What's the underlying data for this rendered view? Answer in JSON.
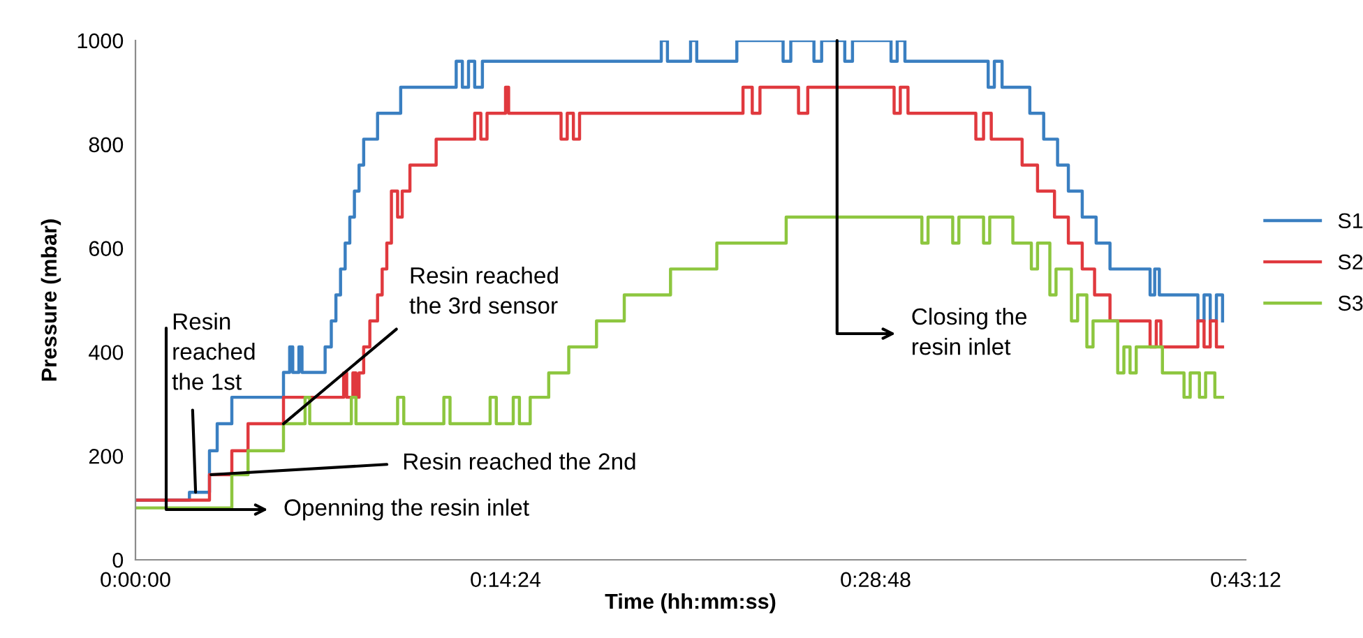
{
  "chart_data": {
    "type": "step",
    "xlabel": "Time (hh:mm:ss)",
    "ylabel": "Pressure (mbar)",
    "xlim": [
      0,
      0.72
    ],
    "xticks": [
      {
        "value": 0,
        "label": "0:00:00"
      },
      {
        "value": 0.24,
        "label": "0:14:24"
      },
      {
        "value": 0.48,
        "label": "0:28:48"
      },
      {
        "value": 0.72,
        "label": "0:43:12"
      }
    ],
    "ylim": [
      0,
      1000
    ],
    "yticks": [
      0,
      200,
      400,
      600,
      800,
      1000
    ],
    "legend": "right",
    "series": [
      {
        "name": "S1",
        "color": "#3a7fc1",
        "x": [
          0,
          0.035,
          0.048,
          0.053,
          0.0625,
          0.096,
          0.1,
          0.102,
          0.106,
          0.108,
          0.123,
          0.127,
          0.13,
          0.133,
          0.136,
          0.139,
          0.142,
          0.145,
          0.148,
          0.157,
          0.172,
          0.208,
          0.212,
          0.216,
          0.22,
          0.225,
          0.341,
          0.345,
          0.36,
          0.364,
          0.39,
          0.42,
          0.425,
          0.44,
          0.445,
          0.46,
          0.465,
          0.49,
          0.494,
          0.499,
          0.553,
          0.557,
          0.562,
          0.58,
          0.589,
          0.598,
          0.605,
          0.614,
          0.623,
          0.632,
          0.658,
          0.661,
          0.664,
          0.689,
          0.693,
          0.697,
          0.701,
          0.705
        ],
        "values": [
          115,
          130,
          210,
          262,
          313,
          361,
          410,
          361,
          410,
          361,
          410,
          460,
          510,
          560,
          610,
          660,
          710,
          760,
          810,
          860,
          910,
          960,
          910,
          960,
          910,
          960,
          1000,
          960,
          1000,
          960,
          1000,
          960,
          1000,
          960,
          1000,
          960,
          1000,
          960,
          1000,
          960,
          910,
          960,
          910,
          860,
          810,
          760,
          710,
          660,
          610,
          560,
          510,
          560,
          510,
          460,
          510,
          460,
          510,
          460
        ]
      },
      {
        "name": "S2",
        "color": "#e0393e",
        "x": [
          0,
          0.048,
          0.0625,
          0.073,
          0.096,
          0.135,
          0.137,
          0.141,
          0.143,
          0.145,
          0.148,
          0.152,
          0.157,
          0.16,
          0.163,
          0.166,
          0.17,
          0.173,
          0.178,
          0.195,
          0.22,
          0.224,
          0.228,
          0.24,
          0.242,
          0.276,
          0.28,
          0.284,
          0.288,
          0.394,
          0.4,
          0.405,
          0.43,
          0.436,
          0.492,
          0.496,
          0.501,
          0.545,
          0.55,
          0.555,
          0.575,
          0.585,
          0.596,
          0.605,
          0.614,
          0.622,
          0.632,
          0.658,
          0.662,
          0.665,
          0.689,
          0.693,
          0.697,
          0.701,
          0.705
        ],
        "values": [
          115,
          164,
          210,
          262,
          313,
          360,
          313,
          360,
          313,
          360,
          410,
          460,
          510,
          560,
          610,
          710,
          660,
          710,
          760,
          810,
          860,
          810,
          860,
          910,
          860,
          810,
          860,
          810,
          860,
          910,
          860,
          910,
          860,
          910,
          860,
          910,
          860,
          810,
          860,
          810,
          760,
          710,
          660,
          610,
          560,
          510,
          460,
          410,
          460,
          410,
          460,
          410,
          460,
          410,
          410
        ]
      },
      {
        "name": "S3",
        "color": "#8dc63f",
        "x": [
          0,
          0.0625,
          0.073,
          0.096,
          0.11,
          0.113,
          0.14,
          0.143,
          0.17,
          0.174,
          0.2,
          0.204,
          0.23,
          0.234,
          0.245,
          0.249,
          0.256,
          0.268,
          0.281,
          0.299,
          0.317,
          0.347,
          0.377,
          0.422,
          0.51,
          0.514,
          0.53,
          0.534,
          0.55,
          0.554,
          0.569,
          0.581,
          0.585,
          0.593,
          0.597,
          0.607,
          0.611,
          0.617,
          0.621,
          0.637,
          0.641,
          0.645,
          0.649,
          0.666,
          0.68,
          0.684,
          0.69,
          0.694,
          0.7,
          0.705
        ],
        "values": [
          100,
          164,
          210,
          262,
          313,
          262,
          313,
          262,
          313,
          262,
          313,
          262,
          313,
          262,
          313,
          262,
          313,
          360,
          410,
          460,
          510,
          560,
          610,
          660,
          610,
          660,
          610,
          660,
          610,
          660,
          610,
          560,
          610,
          510,
          560,
          460,
          510,
          410,
          460,
          360,
          410,
          360,
          410,
          360,
          313,
          360,
          313,
          360,
          313,
          313
        ]
      }
    ],
    "annotations": [
      "Openning the resin inlet",
      {
        "text": "Resin\nreached\nthe 1st",
        "x": 0.039,
        "y": 130
      },
      {
        "text": "Resin reached the 2nd",
        "x": 0.049,
        "y": 164
      },
      {
        "text": "Resin reached\nthe 3rd sensor",
        "x": 0.096,
        "y": 262
      },
      {
        "text": "Closing the\nresin inlet",
        "x": 0.455,
        "y": 1000
      }
    ]
  }
}
